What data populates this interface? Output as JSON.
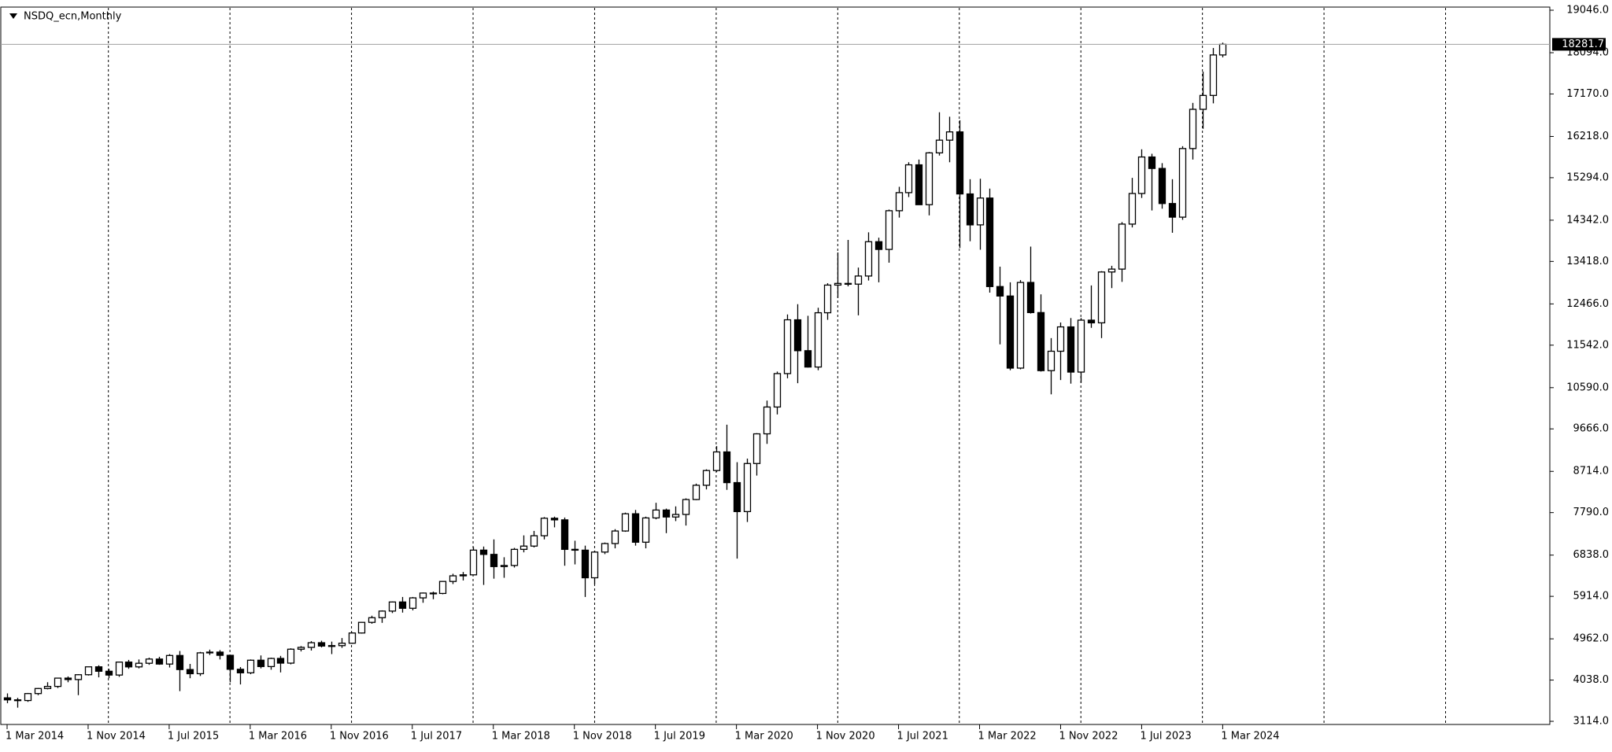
{
  "chart_data": {
    "type": "candlestick",
    "title": "NSDQ_ecn,Monthly",
    "categories": [
      "1 Mar 2014",
      null,
      null,
      null,
      null,
      null,
      null,
      null,
      "1 Nov 2014",
      null,
      null,
      null,
      null,
      null,
      null,
      null,
      "1 Jul 2015",
      null,
      null,
      null,
      null,
      null,
      null,
      null,
      "1 Mar 2016",
      null,
      null,
      null,
      null,
      null,
      null,
      null,
      "1 Nov 2016",
      null,
      null,
      null,
      null,
      null,
      null,
      null,
      "1 Jul 2017",
      null,
      null,
      null,
      null,
      null,
      null,
      null,
      "1 Mar 2018",
      null,
      null,
      null,
      null,
      null,
      null,
      null,
      "1 Nov 2018",
      null,
      null,
      null,
      null,
      null,
      null,
      null,
      "1 Jul 2019",
      null,
      null,
      null,
      null,
      null,
      null,
      null,
      "1 Mar 2020",
      null,
      null,
      null,
      null,
      null,
      null,
      null,
      "1 Nov 2020",
      null,
      null,
      null,
      null,
      null,
      null,
      null,
      "1 Jul 2021",
      null,
      null,
      null,
      null,
      null,
      null,
      null,
      "1 Mar 2022",
      null,
      null,
      null,
      null,
      null,
      null,
      null,
      "1 Nov 2022",
      null,
      null,
      null,
      null,
      null,
      null,
      null,
      "1 Jul 2023",
      null,
      null,
      null,
      null,
      null,
      null,
      null,
      "1 Mar 2024"
    ],
    "open": [
      3640,
      3595,
      3580,
      3736,
      3849,
      3896,
      4082,
      4050,
      4158,
      4335,
      4236,
      4151,
      4441,
      4334,
      4415,
      4509,
      4397,
      4589,
      4274,
      4181,
      4648,
      4665,
      4593,
      4280,
      4201,
      4483,
      4341,
      4523,
      4418,
      4730,
      4771,
      4875,
      4801,
      4810,
      4864,
      5093,
      5331,
      5436,
      5584,
      5788,
      5647,
      5880,
      5988,
      5979,
      6248,
      6374,
      6396,
      6950,
      6854,
      6581,
      6606,
      6967,
      7040,
      7272,
      7664,
      7628,
      6967,
      6949,
      6330,
      6906,
      7097,
      7378,
      7764,
      7127,
      7671,
      7848,
      7692,
      7749,
      8083,
      8403,
      8733,
      9150,
      8462,
      7813,
      8890,
      9555,
      10156,
      10905,
      12110,
      11418,
      11052,
      12268,
      12888,
      12925,
      12909,
      13091,
      13860,
      13687,
      14554,
      14959,
      15582,
      14689,
      15850,
      16135,
      16320,
      14930,
      14237,
      14838,
      12855,
      12643,
      11028,
      12947,
      12272,
      10971,
      11406,
      11951,
      10939,
      12102,
      12042,
      13181,
      13246,
      14254,
      14940,
      15758,
      15501,
      14715,
      14410,
      15947,
      16826,
      17137,
      18044
    ],
    "high": [
      3740,
      3640,
      3750,
      3860,
      3990,
      4090,
      4120,
      4170,
      4340,
      4370,
      4290,
      4450,
      4490,
      4500,
      4540,
      4560,
      4620,
      4690,
      4400,
      4670,
      4720,
      4710,
      4600,
      4330,
      4500,
      4590,
      4540,
      4580,
      4750,
      4800,
      4910,
      4920,
      4900,
      4980,
      5110,
      5340,
      5480,
      5600,
      5800,
      5900,
      5900,
      6000,
      6020,
      6260,
      6420,
      6460,
      7020,
      7030,
      7190,
      6790,
      7000,
      7280,
      7380,
      7690,
      7700,
      7680,
      7160,
      7050,
      6940,
      7120,
      7420,
      7790,
      7850,
      7700,
      8010,
      7880,
      7930,
      8110,
      8440,
      8760,
      9280,
      9760,
      8920,
      9000,
      9570,
      10300,
      10950,
      12230,
      12460,
      12200,
      12380,
      12930,
      13620,
      13900,
      13280,
      14070,
      13950,
      14580,
      15090,
      15640,
      15700,
      15870,
      16760,
      16660,
      16580,
      15260,
      15270,
      15050,
      13300,
      12950,
      13000,
      13750,
      12680,
      11700,
      12050,
      12150,
      12150,
      12880,
      13200,
      13320,
      14300,
      15290,
      15930,
      15830,
      15620,
      15260,
      16000,
      16970,
      17670,
      18200,
      18320
    ],
    "low": [
      3520,
      3420,
      3550,
      3700,
      3830,
      3860,
      3990,
      3700,
      4140,
      4100,
      4080,
      4110,
      4290,
      4300,
      4380,
      4380,
      4320,
      3790,
      4080,
      4130,
      4600,
      4500,
      3990,
      3940,
      4170,
      4300,
      4270,
      4210,
      4390,
      4680,
      4700,
      4770,
      4620,
      4760,
      4850,
      5080,
      5300,
      5320,
      5540,
      5550,
      5600,
      5770,
      5850,
      5960,
      6190,
      6270,
      6390,
      6170,
      6310,
      6330,
      6560,
      6900,
      7010,
      7190,
      7460,
      6600,
      6630,
      5900,
      6180,
      6860,
      6990,
      7360,
      7050,
      6990,
      7640,
      7330,
      7600,
      7500,
      8070,
      8310,
      8700,
      8300,
      6760,
      7580,
      8620,
      9330,
      9990,
      10800,
      10690,
      11040,
      10980,
      12110,
      12600,
      12860,
      12210,
      12990,
      12950,
      13390,
      14400,
      14860,
      14740,
      14450,
      15790,
      15640,
      13720,
      13870,
      13680,
      12720,
      11560,
      10980,
      11000,
      12250,
      10950,
      10440,
      10760,
      10680,
      10700,
      11930,
      11700,
      12820,
      12960,
      14180,
      14840,
      14560,
      14600,
      14060,
      14350,
      15700,
      16390,
      16960,
      17990
    ],
    "close": [
      3595,
      3580,
      3736,
      3849,
      3896,
      4082,
      4050,
      4158,
      4335,
      4236,
      4151,
      4441,
      4334,
      4415,
      4509,
      4397,
      4589,
      4274,
      4181,
      4648,
      4665,
      4593,
      4280,
      4201,
      4483,
      4341,
      4523,
      4418,
      4730,
      4771,
      4875,
      4801,
      4810,
      4864,
      5093,
      5331,
      5436,
      5584,
      5788,
      5647,
      5880,
      5988,
      5979,
      6248,
      6374,
      6396,
      6950,
      6854,
      6581,
      6606,
      6967,
      7040,
      7272,
      7664,
      7628,
      6967,
      6949,
      6330,
      6906,
      7097,
      7378,
      7764,
      7127,
      7671,
      7848,
      7692,
      7749,
      8083,
      8403,
      8733,
      9150,
      8462,
      7813,
      8890,
      9555,
      10156,
      10905,
      12110,
      11418,
      11052,
      12268,
      12888,
      12925,
      12909,
      13091,
      13860,
      13687,
      14554,
      14959,
      15582,
      14689,
      15850,
      16135,
      16320,
      14930,
      14237,
      14838,
      12855,
      12643,
      11028,
      12947,
      12272,
      10971,
      11406,
      11951,
      10939,
      12102,
      12042,
      13181,
      13246,
      14254,
      14940,
      15758,
      15501,
      14715,
      14410,
      15947,
      16826,
      17137,
      18044,
      18281.7
    ],
    "up_color": "#ffffff",
    "down_color": "#000000",
    "last_price": 18281.7,
    "ylim": [
      3114,
      19046
    ],
    "yticks": [
      {
        "value": 3114,
        "label": "3114.0"
      },
      {
        "value": 4038,
        "label": "4038.0"
      },
      {
        "value": 4962,
        "label": "4962.0"
      },
      {
        "value": 5914,
        "label": "5914.0"
      },
      {
        "value": 6838,
        "label": "6838.0"
      },
      {
        "value": 7790,
        "label": "7790.0"
      },
      {
        "value": 8714,
        "label": "8714.0"
      },
      {
        "value": 9666,
        "label": "9666.0"
      },
      {
        "value": 10590,
        "label": "10590.0"
      },
      {
        "value": 11542,
        "label": "11542.0"
      },
      {
        "value": 12466,
        "label": "12466.0"
      },
      {
        "value": 13418,
        "label": "13418.0"
      },
      {
        "value": 14342,
        "label": "14342.0"
      },
      {
        "value": 15294,
        "label": "15294.0"
      },
      {
        "value": 16218,
        "label": "16218.0"
      },
      {
        "value": 17170,
        "label": "17170.0"
      },
      {
        "value": 18094,
        "label": "18094.0"
      },
      {
        "value": 19046,
        "label": "19046.0"
      }
    ],
    "grid": true
  }
}
